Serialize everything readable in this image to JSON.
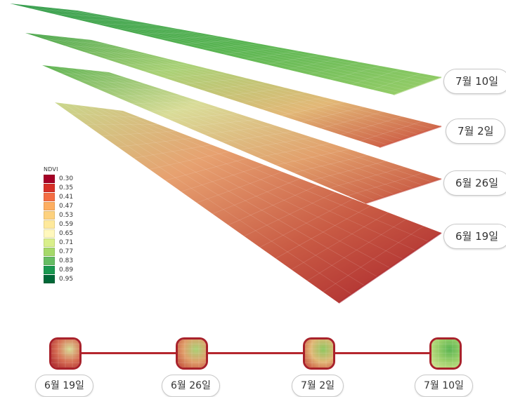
{
  "layers": [
    {
      "date": "7월 10일",
      "colors": [
        "#2f9a48",
        "#5ab552",
        "#9bcf6a"
      ]
    },
    {
      "date": "7월 2일",
      "colors": [
        "#4aa64c",
        "#a9d176",
        "#e2b877",
        "#c94b3b"
      ]
    },
    {
      "date": "6월 26일",
      "colors": [
        "#5db352",
        "#d9dc98",
        "#e2a06c",
        "#c34a3a"
      ]
    },
    {
      "date": "6월 19일",
      "colors": [
        "#c9d88d",
        "#e7a170",
        "#c95b44",
        "#a8222b"
      ]
    }
  ],
  "legend": {
    "title": "NDVI",
    "items": [
      {
        "value": "0.30",
        "color": "#a50026"
      },
      {
        "value": "0.35",
        "color": "#d73027"
      },
      {
        "value": "0.41",
        "color": "#f46d43"
      },
      {
        "value": "0.47",
        "color": "#fdae61"
      },
      {
        "value": "0.53",
        "color": "#fdd17e"
      },
      {
        "value": "0.59",
        "color": "#fee99c"
      },
      {
        "value": "0.65",
        "color": "#fff8bd"
      },
      {
        "value": "0.71",
        "color": "#d9ef8b"
      },
      {
        "value": "0.77",
        "color": "#a6d96a"
      },
      {
        "value": "0.83",
        "color": "#66bd63"
      },
      {
        "value": "0.89",
        "color": "#1a9850"
      },
      {
        "value": "0.95",
        "color": "#006837"
      }
    ]
  },
  "timeline": {
    "accent": "#a8222b",
    "items": [
      {
        "date": "6월 19일",
        "colors": [
          "#d8dc97",
          "#d77055",
          "#a8222b"
        ]
      },
      {
        "date": "6월 26일",
        "colors": [
          "#a9d176",
          "#e0a06b",
          "#c34a3a"
        ]
      },
      {
        "date": "7월 2일",
        "colors": [
          "#8ec760",
          "#e2b877",
          "#c94b3b"
        ]
      },
      {
        "date": "7월 10일",
        "colors": [
          "#5ab552",
          "#9bcf6a",
          "#d9e596"
        ]
      }
    ]
  }
}
